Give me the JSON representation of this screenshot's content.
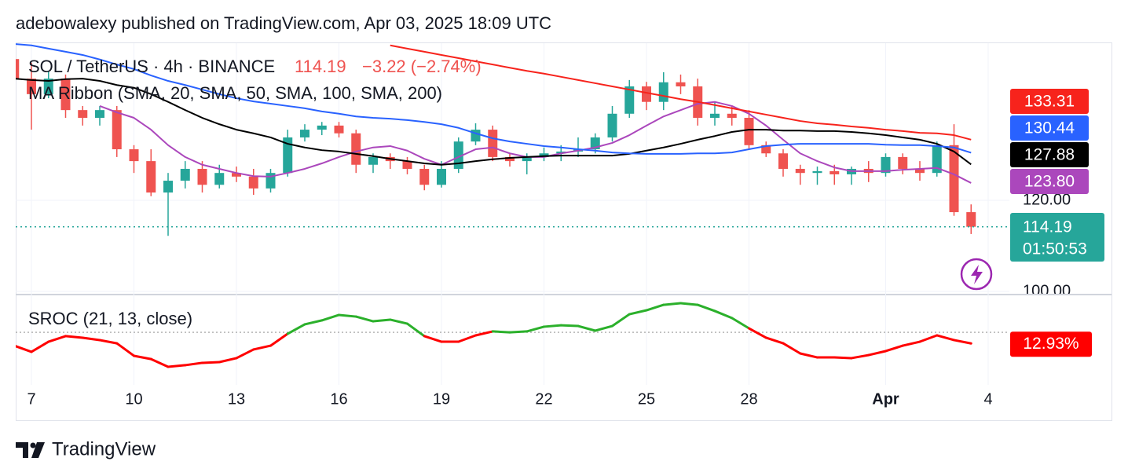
{
  "header": {
    "publisher": "adebowalexy published on TradingView.com, Apr 03, 2025 18:09 UTC",
    "symbol": "SOL / TetherUS · 4h · BINANCE",
    "price": "114.19",
    "change": "−3.22 (−2.74%)",
    "countdown": "01:50:53"
  },
  "footer": {
    "brand": "TradingView"
  },
  "chart_data": [
    {
      "type": "candlestick",
      "title": "MA Ribbon (SMA, 20, SMA, 50, SMA, 100, SMA, 200)",
      "categories": [
        null,
        "7",
        null,
        null,
        null,
        null,
        null,
        "10",
        null,
        null,
        null,
        null,
        null,
        "13",
        null,
        null,
        null,
        null,
        null,
        "16",
        null,
        null,
        null,
        null,
        null,
        "19",
        null,
        null,
        null,
        null,
        null,
        "22",
        null,
        null,
        null,
        null,
        null,
        "25",
        null,
        null,
        null,
        null,
        null,
        "28",
        null,
        null,
        null,
        null,
        null,
        null,
        null,
        "Apr",
        null,
        null,
        null,
        null,
        null,
        "4"
      ],
      "open": [
        151.0,
        146.7,
        143.3,
        146.7,
        139.8,
        138.1,
        139.8,
        131.2,
        128.6,
        121.7,
        124.3,
        126.9,
        123.4,
        126.0,
        125.2,
        122.6,
        126.0,
        133.8,
        135.5,
        136.4,
        134.7,
        127.8,
        129.5,
        128.6,
        126.9,
        123.4,
        126.9,
        132.9,
        135.5,
        129.5,
        128.6,
        129.5,
        130.3,
        130.7,
        131.2,
        133.8,
        139.0,
        145.0,
        141.6,
        145.9,
        145.0,
        138.1,
        139.0,
        138.1,
        132.1,
        130.3,
        126.9,
        126.0,
        126.4,
        125.7,
        126.9,
        126.0,
        129.5,
        126.9,
        126.0,
        132.1,
        117.4,
        null
      ],
      "high": [
        152.2,
        150.2,
        148.4,
        147.6,
        140.7,
        140.7,
        140.7,
        132.1,
        131.2,
        126.0,
        128.6,
        128.6,
        127.8,
        127.4,
        126.9,
        126.9,
        135.5,
        136.7,
        137.2,
        137.2,
        135.5,
        130.3,
        130.3,
        129.5,
        127.8,
        128.6,
        133.8,
        136.9,
        136.4,
        130.3,
        130.3,
        131.6,
        132.1,
        133.8,
        134.7,
        140.7,
        146.4,
        146.0,
        148.1,
        147.6,
        146.7,
        141.6,
        140.7,
        139.8,
        132.9,
        131.2,
        127.8,
        127.4,
        127.8,
        127.4,
        128.6,
        130.3,
        130.3,
        128.6,
        132.9,
        136.7,
        119.1,
        null
      ],
      "low": [
        145.0,
        135.5,
        142.4,
        138.1,
        136.4,
        136.4,
        129.5,
        126.0,
        120.9,
        112.2,
        122.6,
        121.7,
        122.6,
        124.0,
        121.2,
        121.7,
        125.2,
        132.9,
        134.3,
        133.8,
        126.0,
        126.0,
        126.9,
        125.7,
        122.2,
        122.8,
        126.0,
        132.1,
        128.6,
        127.4,
        125.7,
        128.6,
        128.6,
        129.5,
        130.3,
        132.9,
        138.1,
        139.8,
        139.8,
        143.3,
        136.4,
        136.4,
        136.4,
        131.2,
        129.5,
        125.2,
        123.4,
        123.4,
        123.4,
        123.4,
        124.0,
        125.2,
        125.7,
        124.3,
        125.2,
        116.6,
        112.6,
        null
      ],
      "close": [
        146.7,
        143.3,
        146.7,
        139.8,
        138.1,
        139.8,
        131.2,
        128.6,
        121.7,
        124.3,
        126.9,
        123.4,
        126.0,
        125.2,
        122.6,
        126.0,
        133.8,
        135.5,
        136.4,
        134.7,
        127.8,
        129.5,
        128.6,
        126.9,
        123.4,
        126.9,
        132.9,
        135.5,
        129.5,
        128.6,
        129.5,
        130.3,
        130.7,
        131.2,
        133.8,
        139.0,
        145.0,
        141.6,
        145.9,
        145.0,
        138.1,
        139.0,
        138.1,
        132.1,
        130.3,
        126.9,
        126.0,
        126.4,
        125.7,
        126.9,
        126.0,
        129.5,
        126.9,
        126.0,
        132.1,
        117.4,
        114.19,
        null
      ],
      "up_color": "#26a69a",
      "down_color": "#ef5350",
      "last_price_color": "#26a69a",
      "series": [
        {
          "color": "#ab47bc",
          "last_label": "123.80",
          "values": [
            null,
            null,
            null,
            null,
            null,
            140.7,
            139.3,
            138.1,
            135.5,
            132.1,
            129.5,
            127.8,
            126.9,
            126.0,
            125.3,
            125.2,
            126.0,
            126.9,
            128.1,
            129.5,
            130.7,
            131.6,
            131.9,
            130.9,
            129.1,
            127.8,
            129.5,
            131.2,
            131.6,
            130.3,
            129.5,
            129.5,
            130.3,
            130.9,
            131.6,
            132.6,
            134.3,
            136.4,
            138.4,
            139.8,
            141.2,
            141.6,
            140.7,
            139.0,
            136.4,
            133.3,
            130.3,
            128.6,
            127.2,
            126.4,
            126.4,
            126.4,
            126.7,
            126.9,
            127.1,
            125.7,
            123.8,
            null
          ]
        },
        {
          "color": "#000000",
          "last_label": "127.88",
          "values": [
            146.7,
            146.4,
            146.2,
            146.6,
            146.7,
            146.2,
            145.3,
            144.7,
            143.3,
            141.6,
            139.8,
            138.1,
            136.7,
            135.5,
            134.7,
            133.8,
            132.4,
            131.6,
            131.0,
            130.7,
            130.2,
            129.7,
            129.1,
            128.6,
            128.1,
            127.8,
            128.1,
            128.6,
            129.0,
            129.3,
            129.5,
            129.7,
            129.8,
            129.8,
            129.8,
            129.8,
            130.2,
            130.9,
            131.6,
            132.4,
            133.3,
            134.1,
            135.0,
            135.5,
            135.5,
            135.3,
            135.3,
            135.2,
            135.2,
            135.0,
            134.7,
            134.3,
            133.8,
            133.3,
            132.4,
            130.7,
            127.88,
            null
          ]
        },
        {
          "color": "#2962ff",
          "last_label": "130.44",
          "values": [
            154.3,
            154.0,
            153.3,
            152.6,
            151.9,
            150.9,
            149.8,
            148.8,
            147.4,
            146.2,
            145.3,
            144.3,
            143.3,
            142.4,
            141.7,
            141.2,
            140.7,
            140.2,
            139.5,
            139.0,
            138.4,
            138.1,
            137.9,
            137.6,
            137.2,
            136.7,
            135.9,
            134.7,
            133.6,
            132.9,
            132.4,
            131.9,
            131.6,
            131.2,
            130.9,
            130.5,
            130.3,
            130.2,
            130.2,
            130.2,
            130.3,
            130.3,
            130.5,
            131.2,
            131.9,
            132.2,
            132.4,
            132.4,
            132.4,
            132.4,
            132.4,
            132.2,
            132.1,
            132.1,
            131.9,
            131.6,
            130.44,
            null
          ]
        },
        {
          "color": "#f7231c",
          "last_label": "133.31",
          "values": [
            null,
            null,
            null,
            null,
            null,
            null,
            null,
            null,
            null,
            null,
            null,
            null,
            null,
            null,
            null,
            null,
            null,
            null,
            null,
            null,
            null,
            null,
            154.0,
            153.3,
            152.6,
            151.9,
            151.2,
            150.5,
            149.8,
            149.1,
            148.4,
            147.8,
            147.1,
            146.4,
            145.7,
            145.0,
            144.3,
            143.6,
            142.9,
            142.2,
            141.6,
            140.9,
            140.2,
            139.5,
            138.8,
            138.1,
            137.4,
            136.9,
            136.6,
            136.2,
            135.9,
            135.5,
            135.2,
            134.8,
            134.7,
            134.3,
            133.31,
            null
          ]
        }
      ],
      "ylim": [
        100,
        154.48
      ],
      "yticks": [
        {
          "value": 120,
          "label": "120.00"
        },
        {
          "value": 100,
          "label": "100.00"
        }
      ],
      "grid": true
    },
    {
      "type": "line",
      "title": "SROC (21, 13, close)",
      "values": [
        11.7,
        8.3,
        13.9,
        17.0,
        16.1,
        14.8,
        13.0,
        6.1,
        4.3,
        0.0,
        0.9,
        2.2,
        2.6,
        4.8,
        9.6,
        11.7,
        18.3,
        23.5,
        25.7,
        28.7,
        27.8,
        25.2,
        26.1,
        23.9,
        17.0,
        13.9,
        13.9,
        17.4,
        19.6,
        19.1,
        19.6,
        22.2,
        23.0,
        22.6,
        20.0,
        22.6,
        29.1,
        31.3,
        34.3,
        35.2,
        34.3,
        30.9,
        27.0,
        21.3,
        16.1,
        13.0,
        7.4,
        5.2,
        5.2,
        4.8,
        6.5,
        8.7,
        11.7,
        13.9,
        17.4,
        14.8,
        12.93,
        null
      ],
      "last_label": "12.93%",
      "reference": 19.1,
      "up_color": "#2bb02b",
      "down_color": "#ff0000",
      "ylim": [
        -10,
        40
      ]
    }
  ]
}
